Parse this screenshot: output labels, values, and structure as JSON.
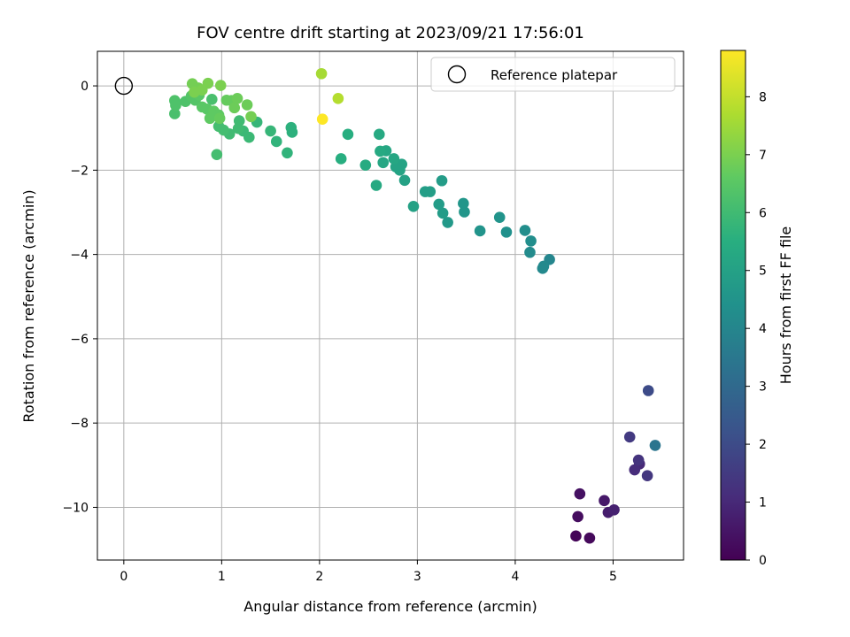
{
  "chart_data": {
    "type": "scatter",
    "title": "FOV centre drift starting at 2023/09/21 17:56:01",
    "xlabel": "Angular distance from reference (arcmin)",
    "ylabel": "Rotation from reference (arcmin)",
    "xlim": [
      -0.27,
      5.72
    ],
    "ylim": [
      -11.25,
      0.82
    ],
    "xticks": [
      0,
      1,
      2,
      3,
      4,
      5
    ],
    "yticks": [
      0,
      -2,
      -4,
      -6,
      -8,
      -10
    ],
    "grid": true,
    "legend": {
      "placement": "upper right",
      "entries": [
        "Reference platepar"
      ]
    },
    "colormap": "viridis",
    "colorbar": {
      "label": "Hours from first FF file",
      "range": [
        0,
        8.8
      ],
      "ticks": [
        0,
        1,
        2,
        3,
        4,
        5,
        6,
        7,
        8
      ]
    },
    "reference_point": {
      "x": 0,
      "y": 0,
      "label": "Reference platepar"
    },
    "points": [
      {
        "x": 4.62,
        "y": -10.68,
        "c": 0.1
      },
      {
        "x": 4.76,
        "y": -10.73,
        "c": 0.2
      },
      {
        "x": 4.64,
        "y": -10.22,
        "c": 0.3
      },
      {
        "x": 4.66,
        "y": -9.68,
        "c": 0.4
      },
      {
        "x": 4.91,
        "y": -9.84,
        "c": 0.6
      },
      {
        "x": 4.95,
        "y": -10.12,
        "c": 0.7
      },
      {
        "x": 5.01,
        "y": -10.06,
        "c": 0.8
      },
      {
        "x": 5.27,
        "y": -8.97,
        "c": 1.0
      },
      {
        "x": 5.22,
        "y": -9.11,
        "c": 1.1
      },
      {
        "x": 5.26,
        "y": -8.88,
        "c": 1.3
      },
      {
        "x": 5.35,
        "y": -9.25,
        "c": 1.4
      },
      {
        "x": 5.17,
        "y": -8.33,
        "c": 1.5
      },
      {
        "x": 5.36,
        "y": -7.23,
        "c": 2.0
      },
      {
        "x": 5.43,
        "y": -8.53,
        "c": 3.4
      },
      {
        "x": 4.35,
        "y": -4.12,
        "c": 4.0
      },
      {
        "x": 4.29,
        "y": -4.28,
        "c": 4.1
      },
      {
        "x": 4.28,
        "y": -4.33,
        "c": 4.1
      },
      {
        "x": 4.15,
        "y": -3.95,
        "c": 4.2
      },
      {
        "x": 4.16,
        "y": -3.68,
        "c": 4.3
      },
      {
        "x": 4.1,
        "y": -3.43,
        "c": 4.3
      },
      {
        "x": 3.91,
        "y": -3.47,
        "c": 4.4
      },
      {
        "x": 3.84,
        "y": -3.12,
        "c": 4.5
      },
      {
        "x": 3.64,
        "y": -3.44,
        "c": 4.5
      },
      {
        "x": 3.48,
        "y": -2.99,
        "c": 4.6
      },
      {
        "x": 3.47,
        "y": -2.79,
        "c": 4.6
      },
      {
        "x": 3.31,
        "y": -3.24,
        "c": 4.7
      },
      {
        "x": 3.26,
        "y": -3.02,
        "c": 4.8
      },
      {
        "x": 3.22,
        "y": -2.81,
        "c": 4.8
      },
      {
        "x": 3.25,
        "y": -2.25,
        "c": 4.8
      },
      {
        "x": 3.13,
        "y": -2.51,
        "c": 4.9
      },
      {
        "x": 3.08,
        "y": -2.51,
        "c": 4.9
      },
      {
        "x": 2.96,
        "y": -2.86,
        "c": 5.0
      },
      {
        "x": 2.87,
        "y": -2.24,
        "c": 5.0
      },
      {
        "x": 2.84,
        "y": -1.86,
        "c": 5.1
      },
      {
        "x": 2.82,
        "y": -2.0,
        "c": 5.1
      },
      {
        "x": 2.78,
        "y": -1.92,
        "c": 5.1
      },
      {
        "x": 2.76,
        "y": -1.73,
        "c": 5.2
      },
      {
        "x": 2.68,
        "y": -1.54,
        "c": 5.2
      },
      {
        "x": 2.65,
        "y": -1.82,
        "c": 5.2
      },
      {
        "x": 2.62,
        "y": -1.55,
        "c": 5.3
      },
      {
        "x": 2.61,
        "y": -1.15,
        "c": 5.3
      },
      {
        "x": 2.58,
        "y": -2.36,
        "c": 5.3
      },
      {
        "x": 2.47,
        "y": -1.88,
        "c": 5.4
      },
      {
        "x": 2.29,
        "y": -1.15,
        "c": 5.5
      },
      {
        "x": 2.22,
        "y": -1.73,
        "c": 5.5
      },
      {
        "x": 1.72,
        "y": -1.1,
        "c": 5.6
      },
      {
        "x": 1.71,
        "y": -0.99,
        "c": 5.6
      },
      {
        "x": 1.67,
        "y": -1.59,
        "c": 5.7
      },
      {
        "x": 1.56,
        "y": -1.32,
        "c": 5.7
      },
      {
        "x": 1.5,
        "y": -1.07,
        "c": 5.8
      },
      {
        "x": 1.36,
        "y": -0.86,
        "c": 5.8
      },
      {
        "x": 1.28,
        "y": -1.22,
        "c": 5.9
      },
      {
        "x": 1.22,
        "y": -1.07,
        "c": 5.9
      },
      {
        "x": 1.18,
        "y": -0.83,
        "c": 6.0
      },
      {
        "x": 1.17,
        "y": -1.01,
        "c": 6.0
      },
      {
        "x": 1.08,
        "y": -1.14,
        "c": 6.0
      },
      {
        "x": 1.02,
        "y": -1.05,
        "c": 6.1
      },
      {
        "x": 0.97,
        "y": -0.96,
        "c": 6.1
      },
      {
        "x": 0.95,
        "y": -1.63,
        "c": 6.1
      },
      {
        "x": 0.9,
        "y": -0.32,
        "c": 6.2
      },
      {
        "x": 0.52,
        "y": -0.66,
        "c": 6.2
      },
      {
        "x": 0.52,
        "y": -0.35,
        "c": 6.3
      },
      {
        "x": 0.53,
        "y": -0.46,
        "c": 6.3
      },
      {
        "x": 0.63,
        "y": -0.37,
        "c": 6.3
      },
      {
        "x": 0.69,
        "y": -0.24,
        "c": 6.4
      },
      {
        "x": 0.73,
        "y": -0.34,
        "c": 6.4
      },
      {
        "x": 0.77,
        "y": -0.22,
        "c": 6.5
      },
      {
        "x": 0.8,
        "y": -0.5,
        "c": 6.5
      },
      {
        "x": 0.85,
        "y": -0.55,
        "c": 6.5
      },
      {
        "x": 0.88,
        "y": -0.77,
        "c": 6.6
      },
      {
        "x": 0.92,
        "y": -0.6,
        "c": 6.6
      },
      {
        "x": 0.97,
        "y": -0.69,
        "c": 6.6
      },
      {
        "x": 0.98,
        "y": -0.77,
        "c": 6.7
      },
      {
        "x": 1.05,
        "y": -0.34,
        "c": 6.7
      },
      {
        "x": 1.1,
        "y": -0.35,
        "c": 6.7
      },
      {
        "x": 1.13,
        "y": -0.52,
        "c": 6.8
      },
      {
        "x": 1.16,
        "y": -0.3,
        "c": 6.8
      },
      {
        "x": 1.26,
        "y": -0.45,
        "c": 6.8
      },
      {
        "x": 1.3,
        "y": -0.73,
        "c": 6.9
      },
      {
        "x": 0.7,
        "y": 0.05,
        "c": 6.9
      },
      {
        "x": 0.76,
        "y": -0.05,
        "c": 6.9
      },
      {
        "x": 0.8,
        "y": -0.1,
        "c": 7.0
      },
      {
        "x": 0.86,
        "y": 0.06,
        "c": 7.0
      },
      {
        "x": 0.99,
        "y": 0.01,
        "c": 7.0
      },
      {
        "x": 0.72,
        "y": -0.15,
        "c": 7.0
      },
      {
        "x": 2.02,
        "y": 0.29,
        "c": 7.6
      },
      {
        "x": 2.19,
        "y": -0.3,
        "c": 7.8
      },
      {
        "x": 2.03,
        "y": -0.79,
        "c": 8.8
      }
    ]
  }
}
